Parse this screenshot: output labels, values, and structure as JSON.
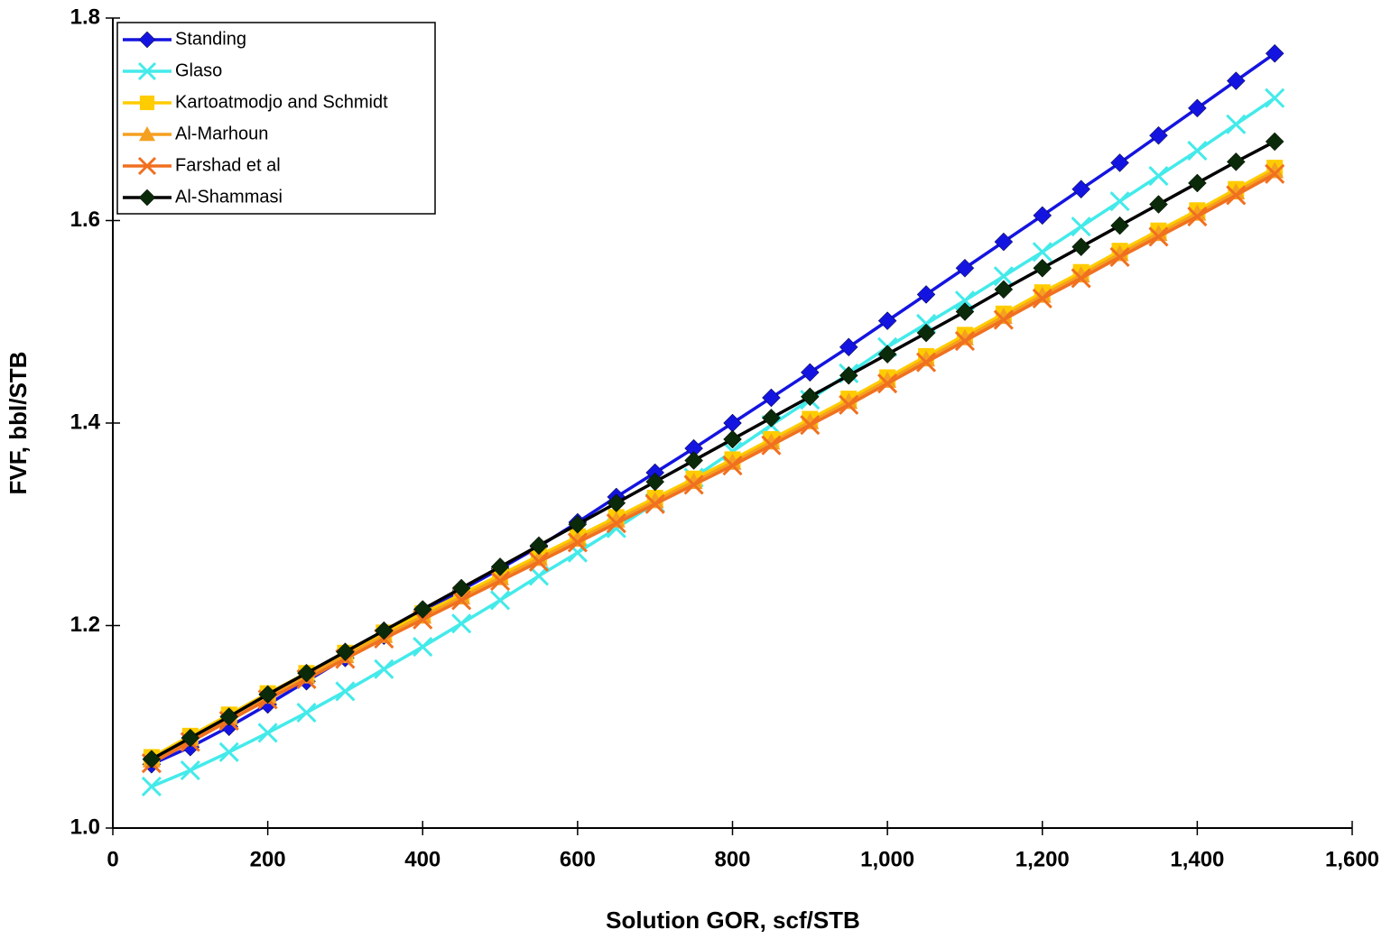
{
  "chart_data": {
    "type": "line",
    "x_label": "Solution GOR, scf/STB",
    "y_label": "FVF, bbl/STB",
    "x": [
      50,
      100,
      150,
      200,
      250,
      300,
      350,
      400,
      450,
      500,
      550,
      600,
      650,
      700,
      750,
      800,
      850,
      900,
      950,
      1000,
      1050,
      1100,
      1150,
      1200,
      1250,
      1300,
      1350,
      1400,
      1450,
      1500
    ],
    "series": [
      {
        "name": "Standing",
        "color": "#1414e0",
        "marker": "diamond",
        "values": [
          1.063,
          1.08,
          1.1,
          1.122,
          1.145,
          1.168,
          1.19,
          1.212,
          1.235,
          1.256,
          1.278,
          1.302,
          1.327,
          1.351,
          1.375,
          1.4,
          1.425,
          1.45,
          1.475,
          1.501,
          1.527,
          1.553,
          1.579,
          1.605,
          1.631,
          1.657,
          1.684,
          1.711,
          1.738,
          1.765
        ]
      },
      {
        "name": "Glaso",
        "color": "#44eaea",
        "marker": "x",
        "values": [
          1.041,
          1.057,
          1.075,
          1.094,
          1.114,
          1.135,
          1.157,
          1.179,
          1.202,
          1.225,
          1.249,
          1.272,
          1.296,
          1.321,
          1.346,
          1.372,
          1.398,
          1.423,
          1.449,
          1.475,
          1.498,
          1.521,
          1.545,
          1.569,
          1.594,
          1.619,
          1.644,
          1.669,
          1.695,
          1.721
        ]
      },
      {
        "name": "Kartoatmodjo and Schmidt",
        "color": "#ffcc00",
        "marker": "square",
        "values": [
          1.07,
          1.091,
          1.112,
          1.133,
          1.153,
          1.173,
          1.193,
          1.212,
          1.231,
          1.25,
          1.269,
          1.288,
          1.307,
          1.326,
          1.345,
          1.364,
          1.384,
          1.404,
          1.424,
          1.445,
          1.466,
          1.487,
          1.508,
          1.529,
          1.549,
          1.57,
          1.59,
          1.61,
          1.631,
          1.652
        ]
      },
      {
        "name": "Al-Marhoun",
        "color": "#f5a020",
        "marker": "triangle",
        "values": [
          1.067,
          1.088,
          1.109,
          1.13,
          1.15,
          1.17,
          1.19,
          1.209,
          1.228,
          1.247,
          1.266,
          1.285,
          1.304,
          1.323,
          1.342,
          1.361,
          1.381,
          1.401,
          1.421,
          1.442,
          1.463,
          1.484,
          1.505,
          1.526,
          1.546,
          1.567,
          1.587,
          1.607,
          1.628,
          1.649
        ]
      },
      {
        "name": "Farshad et al",
        "color": "#f07020",
        "marker": "x",
        "values": [
          1.064,
          1.085,
          1.106,
          1.127,
          1.147,
          1.167,
          1.187,
          1.206,
          1.225,
          1.244,
          1.263,
          1.282,
          1.301,
          1.32,
          1.339,
          1.358,
          1.378,
          1.398,
          1.418,
          1.439,
          1.46,
          1.481,
          1.502,
          1.523,
          1.543,
          1.564,
          1.584,
          1.604,
          1.625,
          1.646
        ]
      },
      {
        "name": "Al-Shammasi",
        "color": "#0a2a0a",
        "marker": "diamond",
        "values": [
          1.068,
          1.089,
          1.11,
          1.132,
          1.153,
          1.174,
          1.195,
          1.216,
          1.237,
          1.258,
          1.279,
          1.3,
          1.321,
          1.342,
          1.363,
          1.384,
          1.405,
          1.426,
          1.447,
          1.468,
          1.489,
          1.51,
          1.532,
          1.553,
          1.574,
          1.595,
          1.616,
          1.637,
          1.658,
          1.678
        ]
      }
    ],
    "xlim": [
      0,
      1600
    ],
    "xticks": [
      0,
      200,
      400,
      600,
      800,
      {
        "value": 1000,
        "label": "1,000"
      },
      {
        "value": 1200,
        "label": "1,200"
      },
      {
        "value": 1400,
        "label": "1,400"
      },
      {
        "value": 1600,
        "label": "1,600"
      }
    ],
    "ylim": [
      1.0,
      1.8
    ],
    "yticks": [
      {
        "value": 1,
        "label": "1.0"
      },
      1.2,
      1.4,
      1.6,
      1.8
    ],
    "grid": false,
    "legend": "top-left"
  }
}
